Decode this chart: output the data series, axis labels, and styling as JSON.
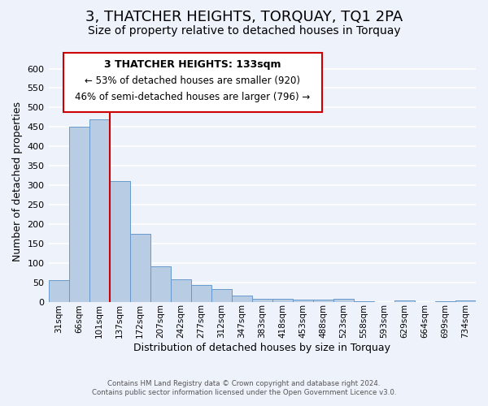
{
  "title": "3, THATCHER HEIGHTS, TORQUAY, TQ1 2PA",
  "subtitle": "Size of property relative to detached houses in Torquay",
  "xlabel": "Distribution of detached houses by size in Torquay",
  "ylabel": "Number of detached properties",
  "bar_color": "#b8cce4",
  "bar_edge_color": "#6699cc",
  "vline_color": "#cc0000",
  "vline_x": 3,
  "categories": [
    "31sqm",
    "66sqm",
    "101sqm",
    "137sqm",
    "172sqm",
    "207sqm",
    "242sqm",
    "277sqm",
    "312sqm",
    "347sqm",
    "383sqm",
    "418sqm",
    "453sqm",
    "488sqm",
    "523sqm",
    "558sqm",
    "593sqm",
    "629sqm",
    "664sqm",
    "699sqm",
    "734sqm"
  ],
  "values": [
    55,
    450,
    470,
    310,
    175,
    90,
    58,
    42,
    32,
    15,
    8,
    8,
    5,
    5,
    8,
    2,
    0,
    3,
    0,
    1,
    3
  ],
  "ylim": [
    0,
    620
  ],
  "yticks": [
    0,
    50,
    100,
    150,
    200,
    250,
    300,
    350,
    400,
    450,
    500,
    550,
    600
  ],
  "annotation_title": "3 THATCHER HEIGHTS: 133sqm",
  "annotation_line1": "← 53% of detached houses are smaller (920)",
  "annotation_line2": "46% of semi-detached houses are larger (796) →",
  "annotation_box_color": "#ffffff",
  "annotation_box_edge": "#cc0000",
  "footer_line1": "Contains HM Land Registry data © Crown copyright and database right 2024.",
  "footer_line2": "Contains public sector information licensed under the Open Government Licence v3.0.",
  "background_color": "#eef2fb",
  "grid_color": "#ffffff",
  "title_fontsize": 13,
  "subtitle_fontsize": 10
}
